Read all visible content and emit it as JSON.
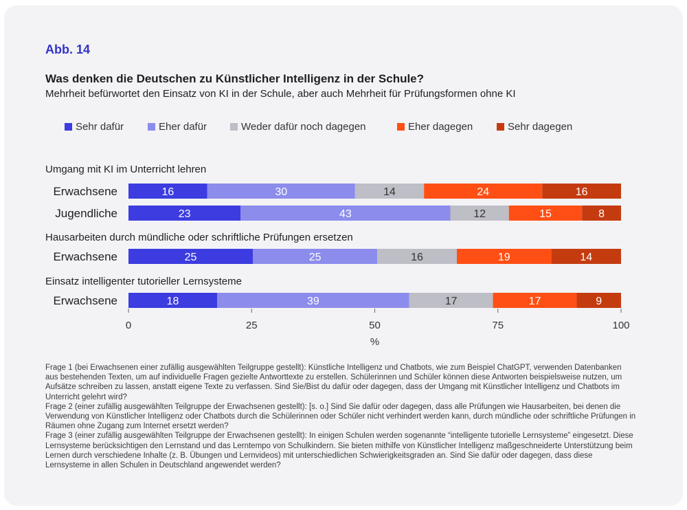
{
  "figure_label": "Abb. 14",
  "chart_data": {
    "type": "bar",
    "orientation": "horizontal",
    "stacked": true,
    "title": "Was denken die Deutschen zu Künstlicher Intelligenz in der Schule?",
    "subtitle": "Mehrheit befürwortet den Einsatz von KI in der Schule, aber auch Mehrheit für Prüfungsformen ohne KI",
    "legend_position": "top",
    "series": [
      {
        "name": "Sehr dafür",
        "color": "#3c3ce0"
      },
      {
        "name": "Eher dafür",
        "color": "#8c8cec"
      },
      {
        "name": "Weder dafür noch dagegen",
        "color": "#bdbec6"
      },
      {
        "name": "Eher dagegen",
        "color": "#ff4f14"
      },
      {
        "name": "Sehr dagegen",
        "color": "#c53b10"
      }
    ],
    "groups": [
      {
        "title": "Umgang mit KI im Unterricht lehren",
        "rows": [
          {
            "label": "Erwachsene",
            "values": [
              16,
              30,
              14,
              24,
              16
            ]
          },
          {
            "label": "Jugendliche",
            "values": [
              23,
              43,
              12,
              15,
              8
            ]
          }
        ]
      },
      {
        "title": "Hausarbeiten durch mündliche oder schriftliche Prüfungen ersetzen",
        "rows": [
          {
            "label": "Erwachsene",
            "values": [
              25,
              25,
              16,
              19,
              14
            ]
          }
        ]
      },
      {
        "title": "Einsatz intelligenter tutorieller Lernsysteme",
        "rows": [
          {
            "label": "Erwachsene",
            "values": [
              18,
              39,
              17,
              17,
              9
            ]
          }
        ]
      }
    ],
    "xlim": [
      0,
      100
    ],
    "xticks": [
      0,
      25,
      50,
      75,
      100
    ],
    "xlabel": "%"
  },
  "footnotes": [
    "Frage 1 (bei Erwachsenen einer zufällig ausgewählten Teilgruppe gestellt): Künstliche Intelligenz und Chatbots, wie zum Beispiel ChatGPT, verwenden Datenbanken aus bestehenden Texten, um auf individuelle Fragen gezielte Antworttexte zu erstellen. Schülerinnen und Schüler können diese Antworten beispielsweise nutzen, um Aufsätze schreiben zu lassen, anstatt eigene Texte zu verfassen. Sind Sie/Bist du dafür oder dagegen, dass der Umgang mit Künstlicher Intelligenz und Chatbots im Unterricht gelehrt wird?",
    "Frage 2 (einer zufällig ausgewählten Teilgruppe der Erwachsenen gestellt): [s. o.] Sind Sie dafür oder dagegen, dass alle Prüfungen wie Hausarbeiten, bei denen die Verwendung von Künstlicher Intelligenz oder Chatbots durch die Schülerinnen oder Schüler nicht verhindert werden kann, durch mündliche oder schriftliche Prüfungen in Räumen ohne Zugang zum Internet ersetzt werden?",
    "Frage 3 (einer zufällig ausgewählten Teilgruppe der Erwachsenen gestellt): In einigen Schulen werden sogenannte “intelligente tutorielle Lernsysteme” eingesetzt. Diese Lernsysteme berücksichtigen den Lernstand und das Lerntempo von Schulkindern. Sie bieten mithilfe von Künstlicher Intelligenz maßgeschneiderte Unterstützung beim Lernen durch verschiedene Inhalte (z. B. Übungen und Lernvideos) mit unterschiedlichen Schwierigkeitsgraden an. Sind Sie dafür oder dagegen, dass diese Lernsysteme in allen Schulen in Deutschland angewendet werden?"
  ]
}
